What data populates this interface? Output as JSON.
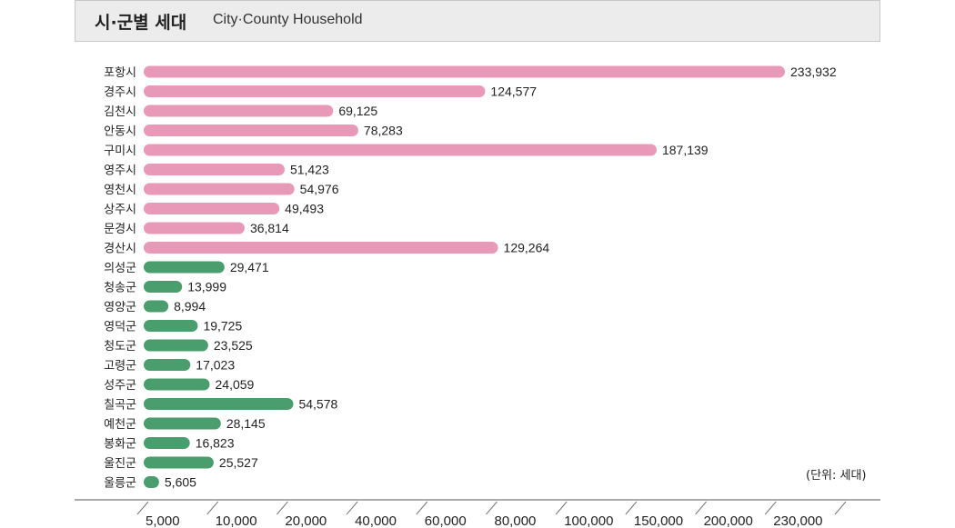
{
  "header": {
    "title_ko": "시·군별 세대",
    "title_en": "City·County Household"
  },
  "unit_note": "(단위: 세대)",
  "colors": {
    "city": "#e899b8",
    "county": "#4a9e6d",
    "header_bg": "#ececec",
    "axis": "#555555"
  },
  "chart_data": {
    "type": "bar",
    "orientation": "horizontal",
    "title": "시·군별 세대 City·County Household",
    "unit": "세대",
    "axis_tick_labels": [
      "5,000",
      "10,000",
      "20,000",
      "40,000",
      "60,000",
      "80,000",
      "100,000",
      "150,000",
      "200,000",
      "230,000"
    ],
    "categories": [
      "포항시",
      "경주시",
      "김천시",
      "안동시",
      "구미시",
      "영주시",
      "영천시",
      "상주시",
      "문경시",
      "경산시",
      "의성군",
      "청송군",
      "영양군",
      "영덕군",
      "청도군",
      "고령군",
      "성주군",
      "칠곡군",
      "예천군",
      "봉화군",
      "울진군",
      "울릉군"
    ],
    "values": [
      233932,
      124577,
      69125,
      78283,
      187139,
      51423,
      54976,
      49493,
      36814,
      129264,
      29471,
      13999,
      8994,
      19725,
      23525,
      17023,
      24059,
      54578,
      28145,
      16823,
      25527,
      5605
    ],
    "value_labels": [
      "233,932",
      "124,577",
      "69,125",
      "78,283",
      "187,139",
      "51,423",
      "54,976",
      "49,493",
      "36,814",
      "129,264",
      "29,471",
      "13,999",
      "8,994",
      "19,725",
      "23,525",
      "17,023",
      "24,059",
      "54,578",
      "28,145",
      "16,823",
      "25,527",
      "5,605"
    ],
    "groups": [
      "city",
      "city",
      "city",
      "city",
      "city",
      "city",
      "city",
      "city",
      "city",
      "city",
      "county",
      "county",
      "county",
      "county",
      "county",
      "county",
      "county",
      "county",
      "county",
      "county",
      "county",
      "county"
    ],
    "series": [
      {
        "name": "시 (City)",
        "color": "#e899b8"
      },
      {
        "name": "군 (County)",
        "color": "#4a9e6d"
      }
    ]
  }
}
